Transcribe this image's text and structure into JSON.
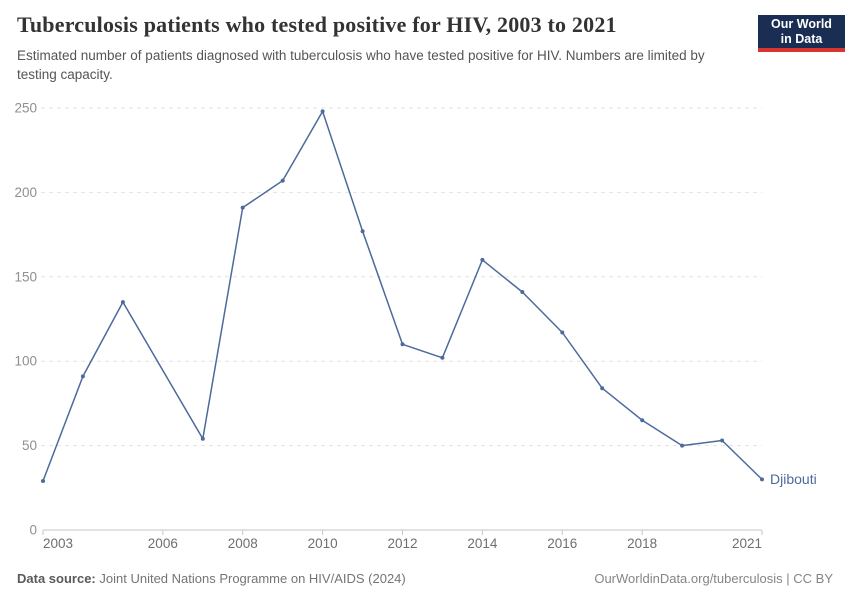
{
  "header": {
    "title": "Tuberculosis patients who tested positive for HIV, 2003 to 2021",
    "subtitle": "Estimated number of patients diagnosed with tuberculosis who have tested positive for HIV. Numbers are limited by testing capacity.",
    "logo": {
      "line1": "Our World",
      "line2": "in Data",
      "bg_color": "#1a2e54",
      "accent_color": "#d8352e"
    }
  },
  "chart_data": {
    "type": "line",
    "title": "Tuberculosis patients who tested positive for HIV, 2003 to 2021",
    "series": [
      {
        "name": "Djibouti",
        "color": "#4c6a9c",
        "x": [
          2003,
          2004,
          2005,
          2007,
          2008,
          2009,
          2010,
          2011,
          2012,
          2013,
          2014,
          2015,
          2016,
          2017,
          2018,
          2019,
          2020,
          2021
        ],
        "y": [
          29,
          91,
          135,
          54,
          191,
          207,
          248,
          177,
          110,
          102,
          160,
          141,
          117,
          84,
          65,
          50,
          53,
          30
        ]
      }
    ],
    "xlabel": "",
    "ylabel": "",
    "xlim": [
      2003,
      2021
    ],
    "ylim": [
      0,
      250
    ],
    "x_ticks": [
      2003,
      2006,
      2008,
      2010,
      2012,
      2014,
      2016,
      2018,
      2021
    ],
    "y_ticks": [
      0,
      50,
      100,
      150,
      200,
      250
    ],
    "grid": "horizontal-dashed",
    "legend": "entity-label-at-line-end",
    "marker": "dot"
  },
  "footer": {
    "source_label": "Data source:",
    "source_text": "Joint United Nations Programme on HIV/AIDS (2024)",
    "attribution": "OurWorldinData.org/tuberculosis | CC BY"
  }
}
